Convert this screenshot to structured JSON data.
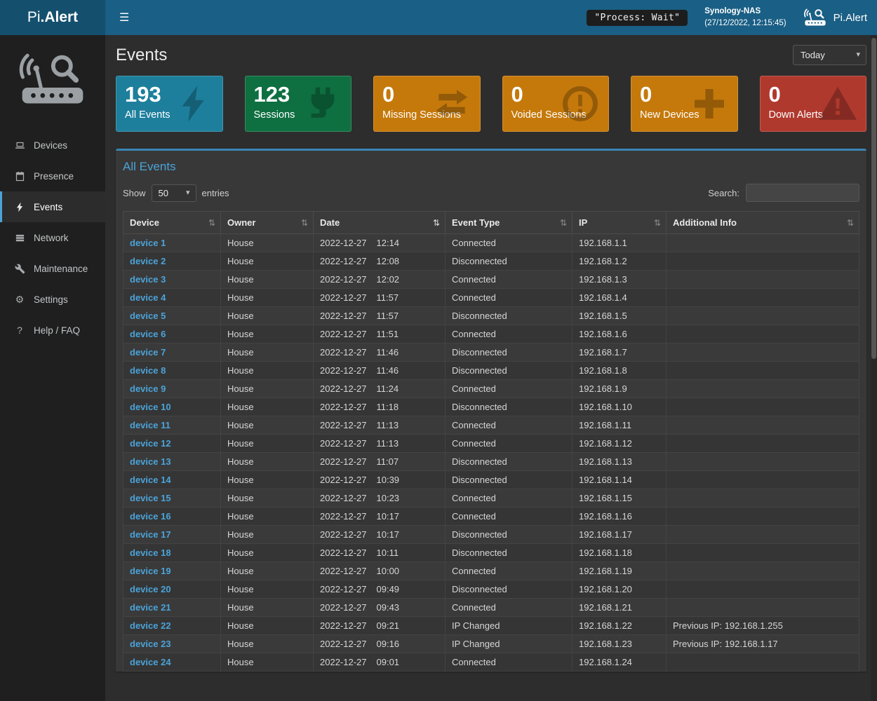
{
  "icons": {
    "menu": "☰",
    "sort": "⇅"
  },
  "topbar": {
    "brand_light": "Pi",
    "brand_bold": ".Alert",
    "process_badge": "\"Process: Wait\"",
    "host": {
      "name": "Synology-NAS",
      "datetime": "(27/12/2022, 12:15:45)"
    },
    "app_label": "Pi.Alert"
  },
  "sidebar": {
    "items": [
      {
        "label": "Devices",
        "icon": "laptop-icon",
        "active": false
      },
      {
        "label": "Presence",
        "icon": "calendar-icon",
        "active": false
      },
      {
        "label": "Events",
        "icon": "bolt-icon",
        "active": true
      },
      {
        "label": "Network",
        "icon": "network-icon",
        "active": false
      },
      {
        "label": "Maintenance",
        "icon": "wrench-icon",
        "active": false
      },
      {
        "label": "Settings",
        "icon": "gear-icon",
        "active": false
      },
      {
        "label": "Help / FAQ",
        "icon": "question-icon",
        "active": false
      }
    ]
  },
  "page": {
    "title": "Events"
  },
  "filter": {
    "selected": "Today"
  },
  "cards": [
    {
      "value": "193",
      "label": "All Events",
      "color": "#1d7f9c",
      "icon": "bolt-icon"
    },
    {
      "value": "123",
      "label": "Sessions",
      "color": "#0e6f41",
      "icon": "plug-icon"
    },
    {
      "value": "0",
      "label": "Missing Sessions",
      "color": "#c5790b",
      "icon": "exchange-icon"
    },
    {
      "value": "0",
      "label": "Voided Sessions",
      "color": "#c5790b",
      "icon": "alert-circle-icon"
    },
    {
      "value": "0",
      "label": "New Devices",
      "color": "#c5790b",
      "icon": "plus-icon"
    },
    {
      "value": "0",
      "label": "Down Alerts",
      "color": "#b0392e",
      "icon": "warning-icon"
    }
  ],
  "panel": {
    "title": "All Events",
    "show_label": "Show",
    "page_size": "50",
    "entries_label": "entries",
    "search_label": "Search:",
    "search_value": ""
  },
  "table": {
    "columns": [
      {
        "label": "Device",
        "sorted": false
      },
      {
        "label": "Owner",
        "sorted": false
      },
      {
        "label": "Date",
        "sorted": true
      },
      {
        "label": "Event Type",
        "sorted": false
      },
      {
        "label": "IP",
        "sorted": false
      },
      {
        "label": "Additional Info",
        "sorted": false
      }
    ],
    "rows": [
      {
        "device": "device 1",
        "owner": "House",
        "date": "2022-12-27",
        "time": "12:14",
        "event_type": "Connected",
        "ip": "192.168.1.1",
        "info": ""
      },
      {
        "device": "device 2",
        "owner": "House",
        "date": "2022-12-27",
        "time": "12:08",
        "event_type": "Disconnected",
        "ip": "192.168.1.2",
        "info": ""
      },
      {
        "device": "device 3",
        "owner": "House",
        "date": "2022-12-27",
        "time": "12:02",
        "event_type": "Connected",
        "ip": "192.168.1.3",
        "info": ""
      },
      {
        "device": "device 4",
        "owner": "House",
        "date": "2022-12-27",
        "time": "11:57",
        "event_type": "Connected",
        "ip": "192.168.1.4",
        "info": ""
      },
      {
        "device": "device 5",
        "owner": "House",
        "date": "2022-12-27",
        "time": "11:57",
        "event_type": "Disconnected",
        "ip": "192.168.1.5",
        "info": ""
      },
      {
        "device": "device 6",
        "owner": "House",
        "date": "2022-12-27",
        "time": "11:51",
        "event_type": "Connected",
        "ip": "192.168.1.6",
        "info": ""
      },
      {
        "device": "device 7",
        "owner": "House",
        "date": "2022-12-27",
        "time": "11:46",
        "event_type": "Disconnected",
        "ip": "192.168.1.7",
        "info": ""
      },
      {
        "device": "device 8",
        "owner": "House",
        "date": "2022-12-27",
        "time": "11:46",
        "event_type": "Disconnected",
        "ip": "192.168.1.8",
        "info": ""
      },
      {
        "device": "device 9",
        "owner": "House",
        "date": "2022-12-27",
        "time": "11:24",
        "event_type": "Connected",
        "ip": "192.168.1.9",
        "info": ""
      },
      {
        "device": "device 10",
        "owner": "House",
        "date": "2022-12-27",
        "time": "11:18",
        "event_type": "Disconnected",
        "ip": "192.168.1.10",
        "info": ""
      },
      {
        "device": "device 11",
        "owner": "House",
        "date": "2022-12-27",
        "time": "11:13",
        "event_type": "Connected",
        "ip": "192.168.1.11",
        "info": ""
      },
      {
        "device": "device 12",
        "owner": "House",
        "date": "2022-12-27",
        "time": "11:13",
        "event_type": "Connected",
        "ip": "192.168.1.12",
        "info": ""
      },
      {
        "device": "device 13",
        "owner": "House",
        "date": "2022-12-27",
        "time": "11:07",
        "event_type": "Disconnected",
        "ip": "192.168.1.13",
        "info": ""
      },
      {
        "device": "device 14",
        "owner": "House",
        "date": "2022-12-27",
        "time": "10:39",
        "event_type": "Disconnected",
        "ip": "192.168.1.14",
        "info": ""
      },
      {
        "device": "device 15",
        "owner": "House",
        "date": "2022-12-27",
        "time": "10:23",
        "event_type": "Connected",
        "ip": "192.168.1.15",
        "info": ""
      },
      {
        "device": "device 16",
        "owner": "House",
        "date": "2022-12-27",
        "time": "10:17",
        "event_type": "Connected",
        "ip": "192.168.1.16",
        "info": ""
      },
      {
        "device": "device 17",
        "owner": "House",
        "date": "2022-12-27",
        "time": "10:17",
        "event_type": "Disconnected",
        "ip": "192.168.1.17",
        "info": ""
      },
      {
        "device": "device 18",
        "owner": "House",
        "date": "2022-12-27",
        "time": "10:11",
        "event_type": "Disconnected",
        "ip": "192.168.1.18",
        "info": ""
      },
      {
        "device": "device 19",
        "owner": "House",
        "date": "2022-12-27",
        "time": "10:00",
        "event_type": "Connected",
        "ip": "192.168.1.19",
        "info": ""
      },
      {
        "device": "device 20",
        "owner": "House",
        "date": "2022-12-27",
        "time": "09:49",
        "event_type": "Disconnected",
        "ip": "192.168.1.20",
        "info": ""
      },
      {
        "device": "device 21",
        "owner": "House",
        "date": "2022-12-27",
        "time": "09:43",
        "event_type": "Connected",
        "ip": "192.168.1.21",
        "info": ""
      },
      {
        "device": "device 22",
        "owner": "House",
        "date": "2022-12-27",
        "time": "09:21",
        "event_type": "IP Changed",
        "ip": "192.168.1.22",
        "info": "Previous IP: 192.168.1.255"
      },
      {
        "device": "device 23",
        "owner": "House",
        "date": "2022-12-27",
        "time": "09:16",
        "event_type": "IP Changed",
        "ip": "192.168.1.23",
        "info": "Previous IP: 192.168.1.17"
      },
      {
        "device": "device 24",
        "owner": "House",
        "date": "2022-12-27",
        "time": "09:01",
        "event_type": "Connected",
        "ip": "192.168.1.24",
        "info": ""
      }
    ]
  }
}
